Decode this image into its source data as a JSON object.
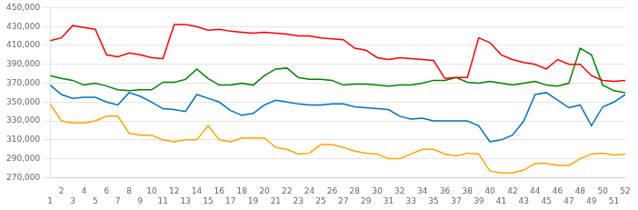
{
  "chart_data": {
    "type": "line",
    "x": [
      1,
      2,
      3,
      4,
      5,
      6,
      7,
      8,
      9,
      10,
      11,
      12,
      13,
      14,
      15,
      16,
      17,
      18,
      19,
      20,
      21,
      22,
      23,
      24,
      25,
      26,
      27,
      28,
      29,
      30,
      31,
      32,
      33,
      34,
      35,
      36,
      37,
      38,
      39,
      40,
      41,
      42,
      43,
      44,
      45,
      46,
      47,
      48,
      49,
      50,
      51,
      52
    ],
    "xlim": [
      1,
      52
    ],
    "xticks": [
      1,
      2,
      3,
      4,
      5,
      6,
      7,
      8,
      9,
      10,
      11,
      12,
      13,
      14,
      15,
      16,
      17,
      18,
      19,
      20,
      21,
      22,
      23,
      24,
      25,
      26,
      27,
      28,
      29,
      30,
      31,
      32,
      33,
      34,
      35,
      36,
      37,
      38,
      39,
      40,
      41,
      42,
      43,
      44,
      45,
      46,
      47,
      48,
      49,
      50,
      51,
      52
    ],
    "ylim": [
      270000,
      450000
    ],
    "yticks": [
      {
        "value": 270000,
        "label": "270,000"
      },
      {
        "value": 290000,
        "label": "290,000"
      },
      {
        "value": 310000,
        "label": "310,000"
      },
      {
        "value": 330000,
        "label": "330,000"
      },
      {
        "value": 350000,
        "label": "350,000"
      },
      {
        "value": 370000,
        "label": "370,000"
      },
      {
        "value": 390000,
        "label": "390,000"
      },
      {
        "value": 410000,
        "label": "410,000"
      },
      {
        "value": 430000,
        "label": "430,000"
      },
      {
        "value": 450000,
        "label": "450,000"
      }
    ],
    "grid": "y",
    "series": [
      {
        "color": "#FF0000",
        "values": [
          415000,
          418000,
          431000,
          429000,
          427000,
          400000,
          398000,
          402000,
          400000,
          397000,
          396000,
          432000,
          432000,
          430000,
          426000,
          427000,
          425000,
          424000,
          423000,
          424000,
          423000,
          422000,
          420000,
          420000,
          418000,
          417000,
          416000,
          407000,
          405000,
          397000,
          395000,
          397000,
          396000,
          395000,
          394000,
          375000,
          376000,
          376000,
          418000,
          413000,
          400000,
          395000,
          392000,
          390000,
          385000,
          395000,
          390000,
          390000,
          378000,
          373000,
          372000,
          373000
        ]
      },
      {
        "color": "#008000",
        "values": [
          378000,
          375000,
          373000,
          368000,
          370000,
          367000,
          363000,
          362000,
          363000,
          363000,
          371000,
          371000,
          374000,
          385000,
          375000,
          368000,
          368000,
          370000,
          368000,
          378000,
          385000,
          386000,
          376000,
          374000,
          374000,
          373000,
          368000,
          369000,
          369000,
          368000,
          367000,
          368000,
          368000,
          370000,
          373000,
          373000,
          376000,
          371000,
          370000,
          372000,
          370000,
          368000,
          370000,
          372000,
          368000,
          367000,
          370000,
          407000,
          400000,
          368000,
          362000,
          360000
        ]
      },
      {
        "color": "#0070C0",
        "values": [
          368000,
          358000,
          354000,
          355000,
          355000,
          350000,
          347000,
          360000,
          356000,
          350000,
          343000,
          342000,
          340000,
          358000,
          354000,
          350000,
          341000,
          336000,
          338000,
          347000,
          352000,
          350000,
          348000,
          347000,
          347000,
          348000,
          348000,
          345000,
          344000,
          343000,
          342000,
          335000,
          332000,
          333000,
          330000,
          330000,
          330000,
          330000,
          325000,
          308000,
          310000,
          315000,
          330000,
          358000,
          360000,
          352000,
          344000,
          347000,
          325000,
          345000,
          350000,
          358000
        ]
      },
      {
        "color": "#FFA500",
        "values": [
          348000,
          330000,
          328000,
          328000,
          330000,
          335000,
          335000,
          317000,
          315000,
          315000,
          310000,
          308000,
          310000,
          310000,
          325000,
          310000,
          308000,
          312000,
          312000,
          312000,
          302000,
          300000,
          295000,
          296000,
          305000,
          305000,
          302000,
          298000,
          296000,
          295000,
          290000,
          290000,
          295000,
          300000,
          300000,
          295000,
          293000,
          296000,
          295000,
          277000,
          275000,
          275000,
          278000,
          285000,
          285000,
          283000,
          283000,
          290000,
          295000,
          296000,
          294000,
          295000
        ]
      }
    ]
  }
}
